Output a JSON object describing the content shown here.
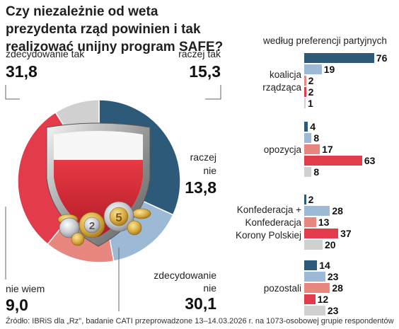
{
  "header": {
    "title": "Czy niezależnie od weta prezydenta rząd powinien i tak realizować unijny program SAFE?"
  },
  "chart_data": [
    {
      "type": "pie",
      "title": "Czy niezależnie od weta prezydenta rząd powinien i tak realizować unijny program SAFE?",
      "slices": [
        {
          "label": "zdecydowanie tak",
          "value": 31.8,
          "display": "31,8",
          "color": "#2d5a79"
        },
        {
          "label": "raczej tak",
          "value": 15.3,
          "display": "15,3",
          "color": "#9cb9d6"
        },
        {
          "label": "raczej nie",
          "value": 13.8,
          "display": "13,8",
          "color": "#e8877f"
        },
        {
          "label": "zdecydowanie nie",
          "value": 30.1,
          "display": "30,1",
          "color": "#e23b4b"
        },
        {
          "label": "nie wiem",
          "value": 9.0,
          "display": "9,0",
          "color": "#d0d0d0"
        }
      ]
    },
    {
      "type": "bar",
      "title": "według preferencji partyjnych",
      "series_colors": [
        "#2d5a79",
        "#9cb9d6",
        "#e8877f",
        "#e23b4b",
        "#d0d0d0"
      ],
      "groups": [
        {
          "label_lines": [
            "koalicja",
            "rządząca"
          ],
          "values": [
            76,
            19,
            2,
            2,
            1
          ]
        },
        {
          "label_lines": [
            "opozycja"
          ],
          "values": [
            4,
            8,
            17,
            63,
            8
          ]
        },
        {
          "label_lines": [
            "Konfederacja +",
            "Konfederacja",
            "Korony Polskiej"
          ],
          "values": [
            2,
            28,
            13,
            37,
            20
          ]
        },
        {
          "label_lines": [
            "pozostali"
          ],
          "values": [
            14,
            23,
            28,
            12,
            23
          ]
        }
      ]
    }
  ],
  "pie_labels": {
    "zdecydowanie_tak": {
      "label": "zdecydowanie tak",
      "value": "31,8"
    },
    "raczej_tak": {
      "label": "raczej tak",
      "value": "15,3"
    },
    "raczej_nie": {
      "label_1": "raczej",
      "label_2": "nie",
      "value": "13,8"
    },
    "zdecydowanie_nie": {
      "label_1": "zdecydowanie",
      "label_2": "nie",
      "value": "30,1"
    },
    "nie_wiem": {
      "label": "nie wiem",
      "value": "9,0"
    }
  },
  "footer": {
    "source": "Źródło: IBRiS dla „Rz\", badanie CATI przeprowadzone 13–14.03.2026 r. na 1073-osobowej grupie respondentów"
  }
}
